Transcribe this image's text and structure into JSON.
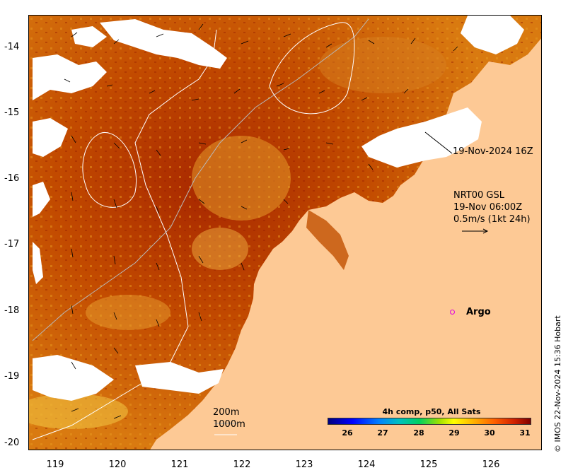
{
  "map": {
    "lon_ticks": [
      "119",
      "120",
      "121",
      "122",
      "123",
      "124",
      "125",
      "126"
    ],
    "lat_ticks": [
      "-14",
      "-15",
      "-16",
      "-17",
      "-18",
      "-19",
      "-20"
    ],
    "lon_range": [
      118.6,
      126.7
    ],
    "lat_range": [
      -20.15,
      -13.5
    ],
    "colors": {
      "land": "#fdc995",
      "sst_warm": "#b23a00",
      "sst_mid": "#d96a00",
      "sst_cool": "#e8a020",
      "cloud": "#ffffff"
    }
  },
  "annotations": {
    "pass_time": "19-Nov-2024 16Z",
    "current_model": "NRT00 GSL",
    "current_time": "19-Nov 06:00Z",
    "current_scale": "0.5m/s (1kt 24h)",
    "argo_label": "Argo",
    "contour_200": "200m",
    "contour_1000": "1000m"
  },
  "colorbar": {
    "title": "4h comp, p50, All Sats",
    "ticks": [
      "26",
      "27",
      "28",
      "29",
      "30",
      "31"
    ],
    "range": [
      25.3,
      31.2
    ]
  },
  "credit": "© IMOS 22-Nov-2024 15:36 Hobart"
}
